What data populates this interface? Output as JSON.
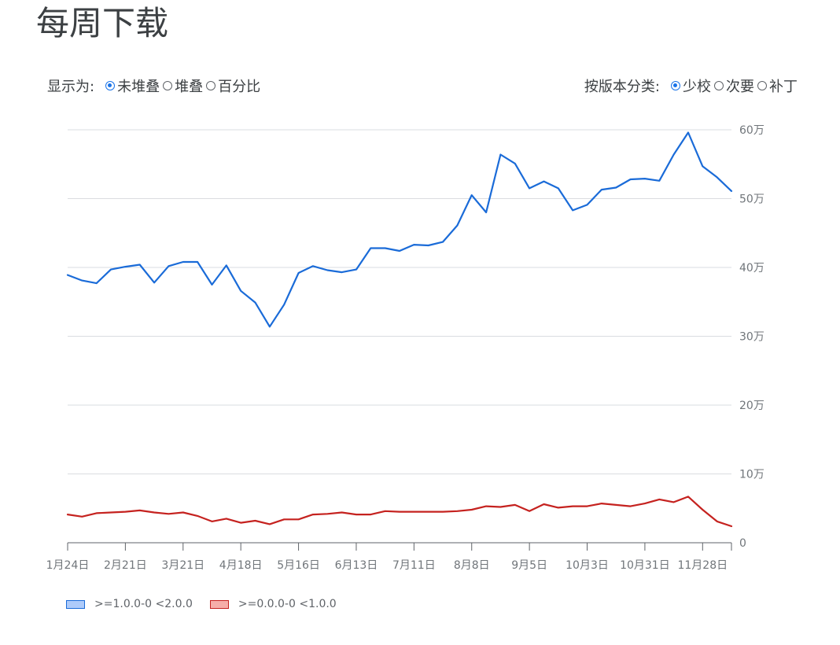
{
  "title": "每周下载",
  "display_control": {
    "label": "显示为:",
    "options": [
      {
        "label": "未堆叠",
        "checked": true
      },
      {
        "label": "堆叠",
        "checked": false
      },
      {
        "label": "百分比",
        "checked": false
      }
    ]
  },
  "classify_control": {
    "label": "按版本分类:",
    "options": [
      {
        "label": "少校",
        "checked": true
      },
      {
        "label": "次要",
        "checked": false
      },
      {
        "label": "补丁",
        "checked": false
      }
    ]
  },
  "colors": {
    "series_1": "#1a6bd8",
    "series_1_fill": "#aecbfa",
    "series_2": "#c5221f",
    "series_2_fill": "#f6aea9",
    "grid": "#dadce0",
    "axis_text": "#70757a"
  },
  "chart_data": {
    "type": "line",
    "ylim": [
      0,
      600000
    ],
    "y_ticks": [
      {
        "value": 0,
        "label": "0"
      },
      {
        "value": 100000,
        "label": "10万"
      },
      {
        "value": 200000,
        "label": "20万"
      },
      {
        "value": 300000,
        "label": "30万"
      },
      {
        "value": 400000,
        "label": "40万"
      },
      {
        "value": 500000,
        "label": "50万"
      },
      {
        "value": 600000,
        "label": "60万"
      }
    ],
    "x_tick_labels": [
      "1月24日",
      "2月21日",
      "3月21日",
      "4月18日",
      "5月16日",
      "6月13日",
      "7月11日",
      "8月8日",
      "9月5日",
      "10月3日",
      "10月31日",
      "11月28日"
    ],
    "x_tick_index": [
      0,
      4,
      8,
      12,
      16,
      20,
      24,
      28,
      32,
      36,
      40,
      44
    ],
    "grid": true,
    "legend_position": "bottom-left",
    "series": [
      {
        "name": ">=1.0.0-0 <2.0.0",
        "values": [
          389000,
          381000,
          377000,
          397000,
          401000,
          404000,
          378000,
          402000,
          408000,
          408000,
          375000,
          403000,
          366000,
          349000,
          314000,
          346000,
          392000,
          402000,
          396000,
          393000,
          397000,
          428000,
          428000,
          424000,
          433000,
          432000,
          437000,
          461000,
          505000,
          480000,
          564000,
          551000,
          515000,
          525000,
          515000,
          483000,
          491000,
          513000,
          516000,
          528000,
          529000,
          526000,
          564000,
          596000,
          547000,
          531000,
          511000
        ]
      },
      {
        "name": ">=0.0.0-0 <1.0.0",
        "values": [
          41000,
          38000,
          43000,
          44000,
          45000,
          47000,
          44000,
          42000,
          44000,
          39000,
          31000,
          35000,
          29000,
          32000,
          27000,
          34000,
          34000,
          41000,
          42000,
          44000,
          41000,
          41000,
          46000,
          45000,
          45000,
          45000,
          45000,
          46000,
          48000,
          53000,
          52000,
          55000,
          46000,
          56000,
          51000,
          53000,
          53000,
          57000,
          55000,
          53000,
          57000,
          63000,
          59000,
          67000,
          48000,
          31000,
          24000
        ]
      }
    ]
  }
}
